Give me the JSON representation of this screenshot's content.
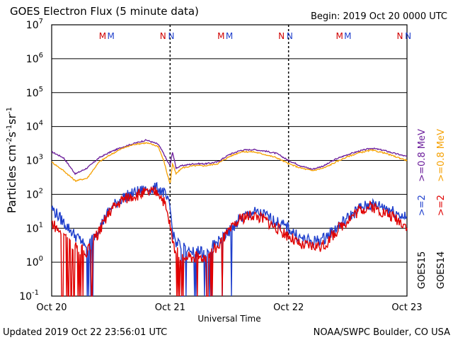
{
  "chart_data": {
    "type": "line",
    "title": "GOES Electron Flux (5 minute data)",
    "begin": "Begin: 2019 Oct 20 0000 UTC",
    "xlabel": "Universal Time",
    "ylabel_base": "Particles cm",
    "ylabel_parts": [
      "-2",
      "s",
      "-1",
      "sr",
      "-1"
    ],
    "y_scale": "log",
    "ylim": [
      0.1,
      10000000
    ],
    "y_ticks": [
      {
        "value": 0.1,
        "base": "10",
        "exp": "-1"
      },
      {
        "value": 1,
        "base": "10",
        "exp": "0"
      },
      {
        "value": 10,
        "base": "10",
        "exp": "1"
      },
      {
        "value": 100,
        "base": "10",
        "exp": "2"
      },
      {
        "value": 1000,
        "base": "10",
        "exp": "3"
      },
      {
        "value": 10000,
        "base": "10",
        "exp": "4"
      },
      {
        "value": 100000,
        "base": "10",
        "exp": "5"
      },
      {
        "value": 1000000,
        "base": "10",
        "exp": "6"
      },
      {
        "value": 10000000,
        "base": "10",
        "exp": "7"
      }
    ],
    "x_range_days": [
      0,
      3
    ],
    "x_ticks": [
      {
        "day": 0,
        "label": "Oct 20"
      },
      {
        "day": 1,
        "label": "Oct 21"
      },
      {
        "day": 2,
        "label": "Oct 22"
      },
      {
        "day": 3,
        "label": "Oct 23"
      }
    ],
    "threshold": 1000,
    "markers": [
      {
        "day": 0.43,
        "text": "M",
        "color": "#d00000"
      },
      {
        "day": 0.5,
        "text": "M",
        "color": "#1f3fcc"
      },
      {
        "day": 0.94,
        "text": "N",
        "color": "#d00000"
      },
      {
        "day": 1.01,
        "text": "N",
        "color": "#1f3fcc"
      },
      {
        "day": 1.43,
        "text": "M",
        "color": "#d00000"
      },
      {
        "day": 1.5,
        "text": "M",
        "color": "#1f3fcc"
      },
      {
        "day": 1.94,
        "text": "N",
        "color": "#d00000"
      },
      {
        "day": 2.01,
        "text": "N",
        "color": "#1f3fcc"
      },
      {
        "day": 2.43,
        "text": "M",
        "color": "#d00000"
      },
      {
        "day": 2.5,
        "text": "M",
        "color": "#1f3fcc"
      },
      {
        "day": 2.94,
        "text": "N",
        "color": "#d00000"
      },
      {
        "day": 3.01,
        "text": "N",
        "color": "#1f3fcc"
      }
    ],
    "series": [
      {
        "name": ">=0.8 MeV",
        "satellite": "GOES15",
        "color": "#6a1b9a",
        "x": [
          0.0,
          0.1,
          0.2,
          0.3,
          0.4,
          0.5,
          0.6,
          0.7,
          0.8,
          0.9,
          0.95,
          0.98,
          1.0,
          1.02,
          1.05,
          1.1,
          1.2,
          1.3,
          1.4,
          1.5,
          1.6,
          1.7,
          1.8,
          1.9,
          2.0,
          2.1,
          2.2,
          2.3,
          2.4,
          2.5,
          2.6,
          2.7,
          2.8,
          2.9,
          3.0
        ],
        "y": [
          1800,
          1200,
          400,
          600,
          1200,
          1800,
          2500,
          3200,
          4000,
          3000,
          1500,
          900,
          700,
          1800,
          600,
          700,
          800,
          800,
          900,
          1500,
          2000,
          2100,
          1900,
          1600,
          1000,
          700,
          550,
          700,
          1100,
          1500,
          1900,
          2300,
          2000,
          1600,
          1300
        ]
      },
      {
        "name": ">=0.8 MeV",
        "satellite": "GOES14",
        "color": "#f5a000",
        "x": [
          0.0,
          0.1,
          0.2,
          0.3,
          0.4,
          0.5,
          0.6,
          0.7,
          0.8,
          0.9,
          0.95,
          0.98,
          1.0,
          1.02,
          1.05,
          1.1,
          1.2,
          1.3,
          1.4,
          1.5,
          1.6,
          1.7,
          1.8,
          1.9,
          2.0,
          2.1,
          2.2,
          2.3,
          2.4,
          2.5,
          2.6,
          2.7,
          2.8,
          2.9,
          3.0
        ],
        "y": [
          900,
          500,
          250,
          300,
          900,
          1500,
          2300,
          3000,
          3300,
          2600,
          900,
          350,
          200,
          800,
          400,
          600,
          700,
          700,
          800,
          1300,
          1800,
          1800,
          1500,
          1200,
          800,
          600,
          500,
          600,
          900,
          1300,
          1700,
          2000,
          1700,
          1300,
          1000
        ]
      },
      {
        "name": ">=2 MeV",
        "satellite": "GOES15",
        "color": "#1f3fcc",
        "x": [
          0.0,
          0.1,
          0.2,
          0.3,
          0.4,
          0.5,
          0.6,
          0.7,
          0.8,
          0.9,
          0.95,
          1.0,
          1.02,
          1.05,
          1.1,
          1.2,
          1.3,
          1.4,
          1.5,
          1.6,
          1.7,
          1.8,
          1.9,
          2.0,
          2.1,
          2.2,
          2.3,
          2.4,
          2.5,
          2.6,
          2.7,
          2.8,
          2.9,
          3.0
        ],
        "y": [
          40,
          15,
          6,
          3,
          10,
          40,
          80,
          110,
          140,
          150,
          110,
          40,
          8,
          4,
          3,
          2,
          2,
          4,
          8,
          20,
          30,
          25,
          15,
          10,
          5,
          4,
          5,
          10,
          20,
          40,
          50,
          45,
          30,
          20
        ],
        "dips": [
          [
            0.25,
            0.35
          ],
          [
            1.05,
            1.55
          ]
        ]
      },
      {
        "name": ">=2 MeV",
        "satellite": "GOES14",
        "color": "#e00000",
        "x": [
          0.0,
          0.1,
          0.2,
          0.3,
          0.4,
          0.5,
          0.6,
          0.7,
          0.8,
          0.9,
          0.95,
          1.0,
          1.02,
          1.05,
          1.1,
          1.2,
          1.3,
          1.4,
          1.5,
          1.6,
          1.7,
          1.8,
          1.9,
          2.0,
          2.1,
          2.2,
          2.3,
          2.4,
          2.5,
          2.6,
          2.7,
          2.8,
          2.9,
          3.0
        ],
        "y": [
          15,
          6,
          3,
          2,
          8,
          35,
          70,
          95,
          110,
          120,
          60,
          12,
          4,
          2,
          1.5,
          1.5,
          1.5,
          3,
          8,
          20,
          25,
          18,
          10,
          6,
          3,
          3,
          3,
          8,
          18,
          35,
          45,
          30,
          20,
          12
        ],
        "dips": [
          [
            0.05,
            0.4
          ],
          [
            1.05,
            1.45
          ]
        ]
      }
    ],
    "legend_right": [
      {
        "text": ">=0.8 MeV",
        "color": "#f5a000"
      },
      {
        "text": ">=0.8 MeV",
        "color": "#6a1b9a"
      },
      {
        "text": ">=2",
        "color": "#e00000"
      },
      {
        "text": ">=2",
        "color": "#1f3fcc"
      },
      {
        "text": "GOES14",
        "color": "#000000"
      },
      {
        "text": "GOES15",
        "color": "#000000"
      }
    ]
  },
  "footer": {
    "updated": "Updated 2019 Oct 22 23:56:01 UTC",
    "credit": "NOAA/SWPC Boulder, CO USA"
  }
}
